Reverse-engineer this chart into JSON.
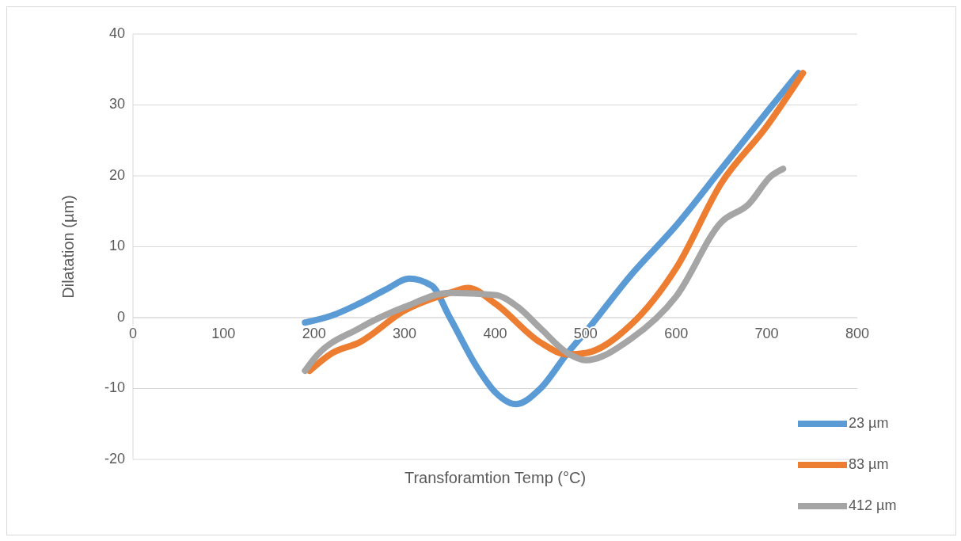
{
  "chart_data": {
    "type": "line",
    "xlabel": "Transforamtion Temp (°C)",
    "ylabel": "Dilatation (µm)",
    "xlim": [
      0,
      800
    ],
    "xticks": [
      0,
      100,
      200,
      300,
      400,
      500,
      600,
      700,
      800
    ],
    "ylim": [
      -20,
      40
    ],
    "yticks": [
      -20,
      -10,
      0,
      10,
      20,
      30,
      40
    ],
    "grid": "y",
    "legend": "bottom right",
    "marker": "none",
    "line_style": "solid",
    "series": [
      {
        "name": "23 µm",
        "color": "#5b9bd5",
        "x": [
          190,
          220,
          250,
          280,
          305,
          330,
          350,
          380,
          400,
          423,
          450,
          480,
          500,
          550,
          600,
          650,
          700,
          735
        ],
        "values": [
          -0.7,
          0.3,
          2,
          4,
          5.5,
          4.5,
          0,
          -7,
          -10.5,
          -12.2,
          -10,
          -5,
          -2,
          6,
          13,
          21,
          29,
          34.5
        ]
      },
      {
        "name": "83 µm",
        "color": "#ed7d31",
        "x": [
          195,
          220,
          250,
          300,
          350,
          370,
          400,
          450,
          480,
          500,
          550,
          600,
          650,
          700,
          740
        ],
        "values": [
          -7.5,
          -5,
          -3.5,
          1,
          3.5,
          4.2,
          2,
          -3.5,
          -5.2,
          -5,
          -1,
          7,
          19,
          27,
          34.5
        ]
      },
      {
        "name": "412 µm",
        "color": "#a5a5a5",
        "x": [
          190,
          200,
          250,
          300,
          350,
          400,
          425,
          450,
          480,
          500,
          550,
          600,
          650,
          680,
          705,
          718
        ],
        "values": [
          -7.5,
          -5.8,
          -1.5,
          1.5,
          3.5,
          3.2,
          1.5,
          -1.5,
          -5,
          -6,
          -3,
          3,
          13.5,
          16,
          20,
          21
        ]
      }
    ]
  }
}
